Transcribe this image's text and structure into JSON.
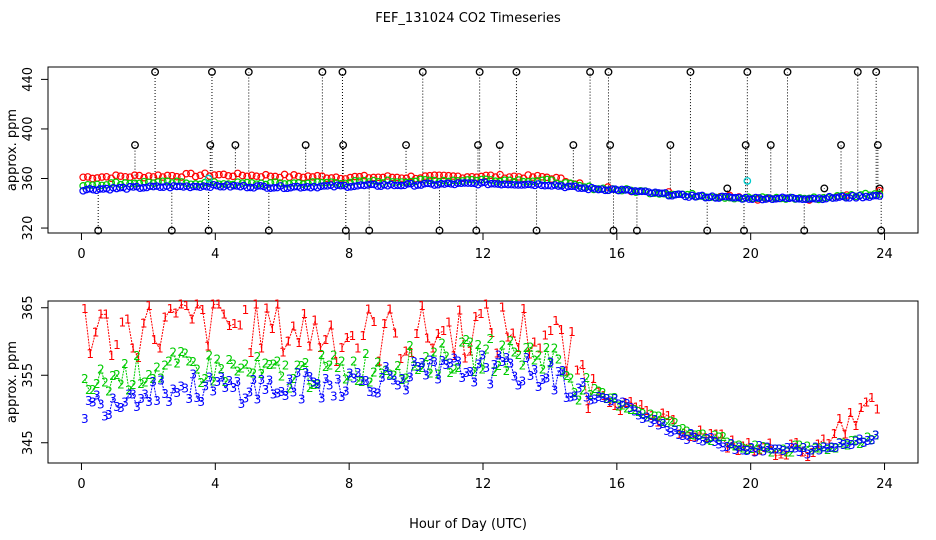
{
  "figure": {
    "title": "FEF_131024  CO2 Timeseries"
  },
  "chart_data": [
    {
      "type": "scatter",
      "title": "FEF_131024  CO2 Timeseries",
      "xlabel": "",
      "ylabel": "approx. ppm",
      "xlim": [
        -1,
        25
      ],
      "ylim": [
        316,
        450
      ],
      "xticks": [
        0,
        4,
        8,
        12,
        16,
        20,
        24
      ],
      "yticks": [
        320,
        360,
        400,
        440
      ],
      "colors": {
        "s1": "#ff0000",
        "s2": "#00cc00",
        "s3": "#0000ff",
        "spike": "#000000",
        "cal": "#00cccc"
      },
      "series_hourly_approx": {
        "hours": [
          0,
          2,
          4,
          6,
          8,
          10,
          12,
          14,
          15,
          16,
          18,
          20,
          22,
          23.8
        ],
        "level1_red": [
          361,
          362,
          363,
          362,
          361,
          361,
          362,
          361,
          355,
          351,
          347,
          344,
          344,
          350
        ],
        "level2_green": [
          355,
          357,
          356,
          356,
          357,
          358,
          359,
          358,
          353,
          351,
          347,
          344,
          344,
          348
        ],
        "level3_blue": [
          351,
          353,
          354,
          353,
          354,
          355,
          356,
          355,
          352,
          351,
          346,
          344,
          344,
          346
        ]
      },
      "spikes": [
        {
          "x": 0.5,
          "y": 318
        },
        {
          "x": 1.6,
          "y": 387
        },
        {
          "x": 2.2,
          "y": 446
        },
        {
          "x": 2.7,
          "y": 318
        },
        {
          "x": 3.8,
          "y": 318
        },
        {
          "x": 3.85,
          "y": 387
        },
        {
          "x": 3.9,
          "y": 446
        },
        {
          "x": 4.6,
          "y": 387
        },
        {
          "x": 5.0,
          "y": 446
        },
        {
          "x": 5.6,
          "y": 318
        },
        {
          "x": 6.7,
          "y": 387
        },
        {
          "x": 7.2,
          "y": 446
        },
        {
          "x": 7.8,
          "y": 446
        },
        {
          "x": 7.82,
          "y": 387
        },
        {
          "x": 7.9,
          "y": 318
        },
        {
          "x": 8.6,
          "y": 318
        },
        {
          "x": 9.7,
          "y": 387
        },
        {
          "x": 10.2,
          "y": 446
        },
        {
          "x": 10.7,
          "y": 318
        },
        {
          "x": 11.8,
          "y": 318
        },
        {
          "x": 11.85,
          "y": 387
        },
        {
          "x": 11.9,
          "y": 446
        },
        {
          "x": 12.5,
          "y": 387
        },
        {
          "x": 13.0,
          "y": 446
        },
        {
          "x": 13.6,
          "y": 318
        },
        {
          "x": 14.7,
          "y": 387
        },
        {
          "x": 15.2,
          "y": 446
        },
        {
          "x": 15.75,
          "y": 446
        },
        {
          "x": 15.8,
          "y": 387
        },
        {
          "x": 15.9,
          "y": 318
        },
        {
          "x": 16.6,
          "y": 318
        },
        {
          "x": 17.6,
          "y": 387
        },
        {
          "x": 18.2,
          "y": 446
        },
        {
          "x": 18.7,
          "y": 318
        },
        {
          "x": 19.3,
          "y": 352
        },
        {
          "x": 19.8,
          "y": 318
        },
        {
          "x": 19.85,
          "y": 387
        },
        {
          "x": 19.9,
          "y": 446
        },
        {
          "x": 20.6,
          "y": 387
        },
        {
          "x": 21.1,
          "y": 446
        },
        {
          "x": 21.6,
          "y": 318
        },
        {
          "x": 22.2,
          "y": 352
        },
        {
          "x": 22.7,
          "y": 387
        },
        {
          "x": 23.2,
          "y": 446
        },
        {
          "x": 23.75,
          "y": 446
        },
        {
          "x": 23.8,
          "y": 387
        },
        {
          "x": 23.85,
          "y": 352
        },
        {
          "x": 23.9,
          "y": 318
        }
      ],
      "cal_points": [
        {
          "x": 3.8,
          "y": 360
        },
        {
          "x": 19.9,
          "y": 358
        }
      ]
    },
    {
      "type": "scatter",
      "title": "",
      "xlabel": "Hour of Day (UTC)",
      "ylabel": "approx. ppm",
      "xlim": [
        -1,
        25
      ],
      "ylim": [
        342,
        366
      ],
      "xticks": [
        0,
        4,
        8,
        12,
        16,
        20,
        24
      ],
      "yticks": [
        345,
        355,
        365
      ],
      "colors": {
        "s1": "#ff0000",
        "s2": "#00cc00",
        "s3": "#0000ff"
      },
      "series": [
        {
          "name": "1",
          "color": "#ff0000",
          "base": [
            [
              0,
              361
            ],
            [
              2,
              362
            ],
            [
              4,
              363
            ],
            [
              6,
              362
            ],
            [
              8,
              361
            ],
            [
              10,
              361
            ],
            [
              12,
              362
            ],
            [
              14,
              361
            ],
            [
              15,
              355
            ],
            [
              16,
              351
            ],
            [
              18,
              347
            ],
            [
              20,
              344
            ],
            [
              22,
              344
            ],
            [
              22.8,
              346
            ],
            [
              23.8,
              350
            ]
          ]
        },
        {
          "name": "2",
          "color": "#00cc00",
          "base": [
            [
              0,
              353
            ],
            [
              2,
              356
            ],
            [
              4,
              356
            ],
            [
              6,
              355
            ],
            [
              8,
              356
            ],
            [
              10,
              357
            ],
            [
              12,
              358
            ],
            [
              14,
              358
            ],
            [
              15,
              353
            ],
            [
              16,
              351
            ],
            [
              18,
              347
            ],
            [
              20,
              344
            ],
            [
              22,
              344
            ],
            [
              23.8,
              346
            ]
          ]
        },
        {
          "name": "3",
          "color": "#0000ff",
          "base": [
            [
              0,
              350
            ],
            [
              2,
              353
            ],
            [
              4,
              353
            ],
            [
              6,
              353
            ],
            [
              8,
              354
            ],
            [
              10,
              355
            ],
            [
              12,
              356
            ],
            [
              14,
              355
            ],
            [
              15,
              352
            ],
            [
              16,
              351
            ],
            [
              18,
              346
            ],
            [
              20,
              344
            ],
            [
              22,
              343.8
            ],
            [
              23.8,
              346
            ]
          ]
        }
      ]
    }
  ]
}
